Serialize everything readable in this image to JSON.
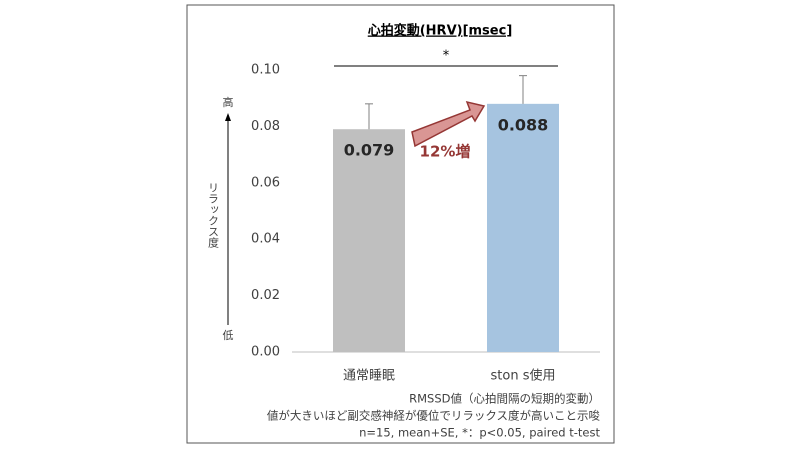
{
  "chart_data": {
    "type": "bar",
    "title": "心拍変動(HRV)[msec]",
    "categories": [
      "通常睡眠",
      "ston s使用"
    ],
    "values": [
      0.079,
      0.088
    ],
    "errors": [
      0.009,
      0.01
    ],
    "colors": [
      "#bfbfbf",
      "#a6c4e0"
    ],
    "ylim": [
      0,
      0.1
    ],
    "yticks": [
      {
        "value": 0,
        "label": "0.00"
      },
      {
        "value": 0.02,
        "label": "0.02"
      },
      {
        "value": 0.04,
        "label": "0.04"
      },
      {
        "value": 0.06,
        "label": "0.06"
      },
      {
        "value": 0.08,
        "label": "0.08"
      },
      {
        "value": 0.1,
        "label": "0.10"
      }
    ],
    "grid": false,
    "significance": "*",
    "increase_label": "12%増",
    "axis_high": "高",
    "axis_low": "低",
    "y_label": "リラックス度",
    "notes": [
      "RMSSD値（心拍間隔の短期的変動）",
      "値が大きいほど副交感神経が優位でリラックス度が高いこと示唆",
      "n=15, mean+SE, *：p<0.05, paired t-test"
    ]
  }
}
